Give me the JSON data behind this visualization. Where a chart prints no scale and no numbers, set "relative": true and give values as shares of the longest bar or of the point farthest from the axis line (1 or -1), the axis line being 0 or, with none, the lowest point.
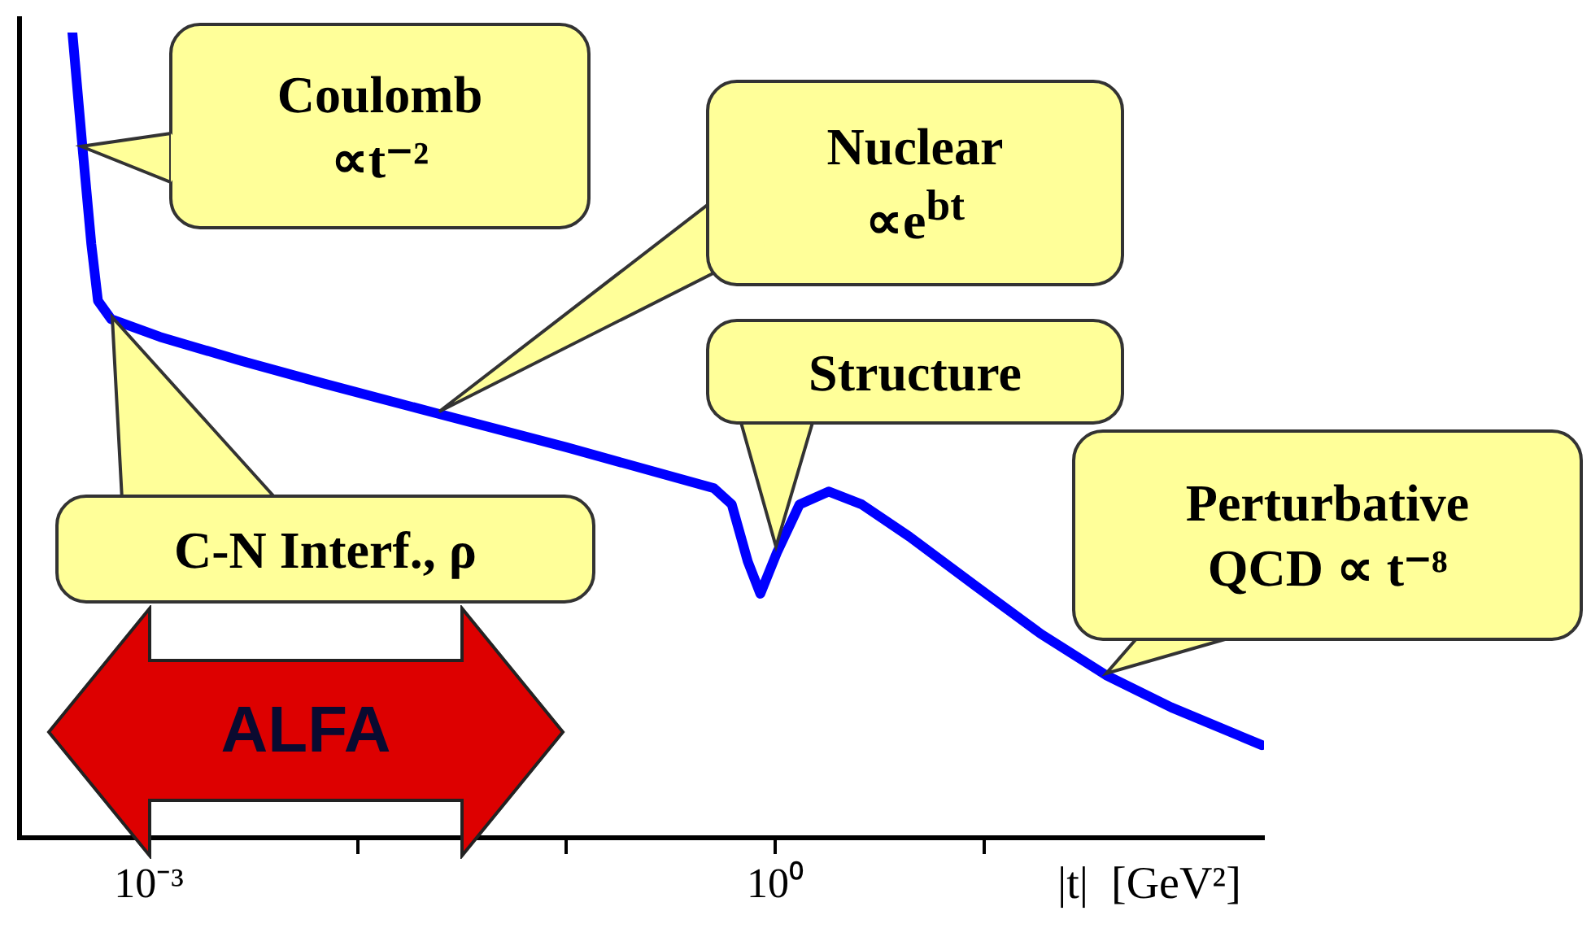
{
  "chart_data": {
    "type": "line",
    "relative": true,
    "log": "x",
    "marker": "none",
    "line_style": "solid",
    "xlabel": "|t|  [GeV²]",
    "xlim": [
      0.00024,
      220
    ],
    "xticks": [
      {
        "value": 0.001,
        "label": "10⁻³"
      },
      {
        "value": 0.01,
        "label": null
      },
      {
        "value": 0.1,
        "label": null
      },
      {
        "value": 1,
        "label": "10⁰"
      },
      {
        "value": 10,
        "label": null
      }
    ],
    "series": [
      {
        "color": "#0000ff",
        "x": [
          0.00043,
          0.00048,
          0.00053,
          0.00057,
          0.00066,
          0.00113,
          0.0028,
          0.0069,
          0.024,
          0.1,
          0.51,
          0.62,
          0.74,
          0.85,
          1.02,
          1.31,
          1.81,
          2.6,
          4.4,
          9.1,
          18.8,
          38.5,
          79,
          215
        ],
        "values": [
          1,
          0.859,
          0.737,
          0.667,
          0.644,
          0.622,
          0.592,
          0.564,
          0.527,
          0.485,
          0.434,
          0.414,
          0.343,
          0.303,
          0.354,
          0.414,
          0.43,
          0.414,
          0.374,
          0.313,
          0.253,
          0.202,
          0.162,
          0.115
        ]
      }
    ],
    "annotations": [
      "Coulomb\n∝t⁻²",
      "Nuclear\n∝e$^{bt}$",
      "Structure",
      "C-N Interf., ρ",
      "Perturbative\nQCD ∝ t⁻⁸",
      "ALFA"
    ]
  }
}
